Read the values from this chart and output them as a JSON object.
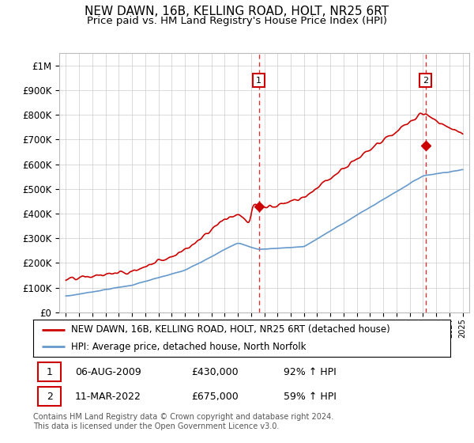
{
  "title": "NEW DAWN, 16B, KELLING ROAD, HOLT, NR25 6RT",
  "subtitle": "Price paid vs. HM Land Registry's House Price Index (HPI)",
  "ylabel_ticks": [
    "£0",
    "£100K",
    "£200K",
    "£300K",
    "£400K",
    "£500K",
    "£600K",
    "£700K",
    "£800K",
    "£900K",
    "£1M"
  ],
  "ytick_values": [
    0,
    100000,
    200000,
    300000,
    400000,
    500000,
    600000,
    700000,
    800000,
    900000,
    1000000
  ],
  "ylim": [
    0,
    1050000
  ],
  "xlim_start": 1994.5,
  "xlim_end": 2025.5,
  "price_paid_color": "#cc0000",
  "hpi_color": "#6699cc",
  "price_paid_label": "NEW DAWN, 16B, KELLING ROAD, HOLT, NR25 6RT (detached house)",
  "hpi_label": "HPI: Average price, detached house, North Norfolk",
  "sale1_date": 2009.6,
  "sale1_price": 430000,
  "sale2_date": 2022.2,
  "sale2_price": 675000,
  "footer": "Contains HM Land Registry data © Crown copyright and database right 2024.\nThis data is licensed under the Open Government Licence v3.0.",
  "background_color": "#ffffff",
  "grid_color": "#cccccc",
  "title_fontsize": 11,
  "subtitle_fontsize": 9.5,
  "tick_label_fontsize": 8.5,
  "legend_fontsize": 8.5,
  "ann_fontsize": 9
}
